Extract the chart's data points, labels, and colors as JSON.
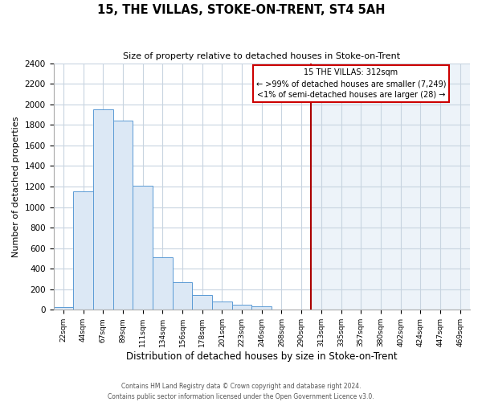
{
  "title": "15, THE VILLAS, STOKE-ON-TRENT, ST4 5AH",
  "subtitle": "Size of property relative to detached houses in Stoke-on-Trent",
  "xlabel": "Distribution of detached houses by size in Stoke-on-Trent",
  "ylabel": "Number of detached properties",
  "bin_labels": [
    "22sqm",
    "44sqm",
    "67sqm",
    "89sqm",
    "111sqm",
    "134sqm",
    "156sqm",
    "178sqm",
    "201sqm",
    "223sqm",
    "246sqm",
    "268sqm",
    "290sqm",
    "313sqm",
    "335sqm",
    "357sqm",
    "380sqm",
    "402sqm",
    "424sqm",
    "447sqm",
    "469sqm"
  ],
  "bar_heights": [
    30,
    1150,
    1950,
    1840,
    1210,
    515,
    265,
    145,
    80,
    50,
    35,
    5,
    5,
    5,
    2,
    2,
    2,
    2,
    2,
    2,
    2
  ],
  "bar_color_left": "#dce8f5",
  "bar_color_right": "#c5d9ef",
  "bar_edge_color": "#5b9bd5",
  "vline_index": 13,
  "vline_color": "#aa0000",
  "annotation_title": "15 THE VILLAS: 312sqm",
  "annotation_line1": "← >99% of detached houses are smaller (7,249)",
  "annotation_line2": "<1% of semi-detached houses are larger (28) →",
  "annotation_box_color": "#ffffff",
  "annotation_box_edge": "#cc0000",
  "ylim": [
    0,
    2400
  ],
  "yticks": [
    0,
    200,
    400,
    600,
    800,
    1000,
    1200,
    1400,
    1600,
    1800,
    2000,
    2200,
    2400
  ],
  "footer_line1": "Contains HM Land Registry data © Crown copyright and database right 2024.",
  "footer_line2": "Contains public sector information licensed under the Open Government Licence v3.0.",
  "bg_color": "#ffffff",
  "grid_color": "#c8d4e0"
}
